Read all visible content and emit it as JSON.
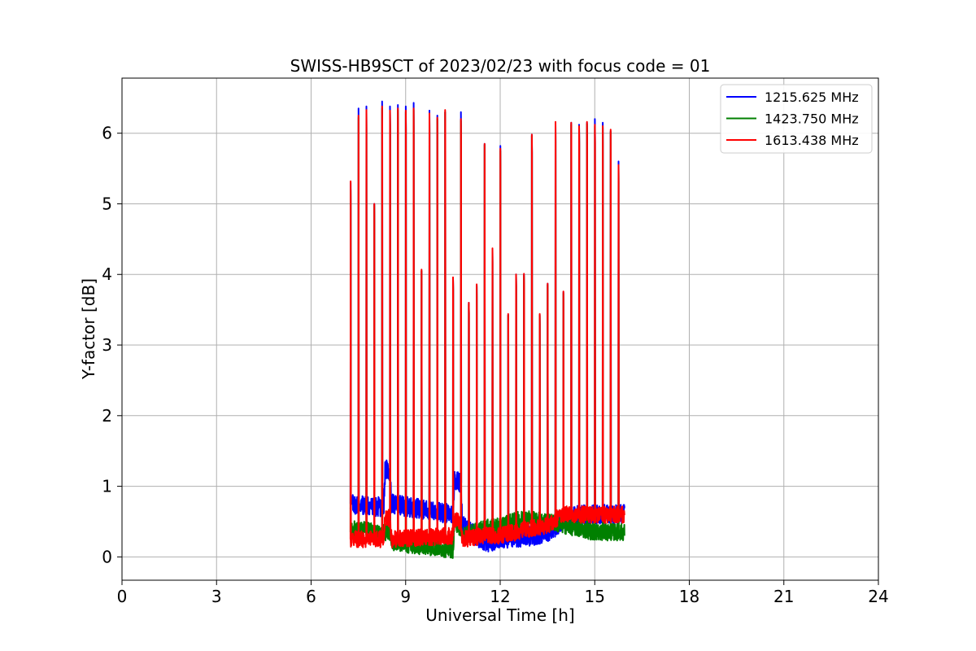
{
  "chart_data": {
    "type": "line",
    "title": "SWISS-HB9SCT of 2023/02/23 with focus code = 01",
    "xlabel": "Universal Time [h]",
    "ylabel": "Y-factor [dB]",
    "xlim": [
      0,
      24
    ],
    "ylim": [
      -0.33,
      6.78
    ],
    "xticks": [
      0,
      3,
      6,
      9,
      12,
      15,
      18,
      21,
      24
    ],
    "yticks": [
      0,
      1,
      2,
      3,
      4,
      5,
      6
    ],
    "grid": true,
    "legend_position": "top-right",
    "series": [
      {
        "name": "1215.625 MHz",
        "color": "#0000ff",
        "baseline": [
          [
            7.25,
            0.75
          ],
          [
            8.3,
            0.7
          ],
          [
            8.35,
            1.25
          ],
          [
            8.5,
            1.2
          ],
          [
            8.55,
            0.75
          ],
          [
            10.5,
            0.6
          ],
          [
            10.55,
            1.1
          ],
          [
            10.75,
            1.05
          ],
          [
            10.8,
            0.45
          ],
          [
            11.2,
            0.3
          ],
          [
            11.5,
            0.2
          ],
          [
            12.0,
            0.25
          ],
          [
            13.0,
            0.3
          ],
          [
            13.5,
            0.35
          ],
          [
            14.0,
            0.5
          ],
          [
            14.5,
            0.6
          ],
          [
            15.0,
            0.6
          ],
          [
            15.95,
            0.62
          ]
        ],
        "noise": 0.14,
        "peaks": [
          [
            7.25,
            5.3
          ],
          [
            7.5,
            6.35
          ],
          [
            7.75,
            6.38
          ],
          [
            8.0,
            5.0
          ],
          [
            8.25,
            6.45
          ],
          [
            8.5,
            6.38
          ],
          [
            8.75,
            6.4
          ],
          [
            9.0,
            6.38
          ],
          [
            9.25,
            6.43
          ],
          [
            9.5,
            4.05
          ],
          [
            9.75,
            6.32
          ],
          [
            10.0,
            6.25
          ],
          [
            10.25,
            6.3
          ],
          [
            10.5,
            3.95
          ],
          [
            10.75,
            6.3
          ],
          [
            11.0,
            3.6
          ],
          [
            11.25,
            3.85
          ],
          [
            11.5,
            5.85
          ],
          [
            11.75,
            4.35
          ],
          [
            12.0,
            5.82
          ],
          [
            12.25,
            3.43
          ],
          [
            12.5,
            4.0
          ],
          [
            12.75,
            4.0
          ],
          [
            13.0,
            5.98
          ],
          [
            13.25,
            3.43
          ],
          [
            13.5,
            3.87
          ],
          [
            13.75,
            6.15
          ],
          [
            14.0,
            3.75
          ],
          [
            14.25,
            6.15
          ],
          [
            14.5,
            6.12
          ],
          [
            14.75,
            6.15
          ],
          [
            15.0,
            6.2
          ],
          [
            15.25,
            6.15
          ],
          [
            15.5,
            6.03
          ],
          [
            15.75,
            5.6
          ]
        ]
      },
      {
        "name": "1423.750 MHz",
        "color": "#008000",
        "baseline": [
          [
            7.25,
            0.35
          ],
          [
            7.4,
            0.4
          ],
          [
            8.1,
            0.35
          ],
          [
            8.5,
            0.35
          ],
          [
            8.6,
            0.2
          ],
          [
            10.5,
            0.1
          ],
          [
            10.55,
            0.5
          ],
          [
            10.75,
            0.4
          ],
          [
            10.8,
            0.3
          ],
          [
            11.5,
            0.4
          ],
          [
            12.0,
            0.45
          ],
          [
            12.8,
            0.55
          ],
          [
            13.5,
            0.5
          ],
          [
            14.0,
            0.45
          ],
          [
            14.5,
            0.4
          ],
          [
            15.0,
            0.35
          ],
          [
            15.95,
            0.35
          ]
        ],
        "noise": 0.12,
        "peaks": [
          [
            7.25,
            5.2
          ],
          [
            7.5,
            6.22
          ],
          [
            7.75,
            6.3
          ],
          [
            8.0,
            4.98
          ],
          [
            8.25,
            6.35
          ],
          [
            8.5,
            6.32
          ],
          [
            8.75,
            6.33
          ],
          [
            9.0,
            6.3
          ],
          [
            9.25,
            6.33
          ],
          [
            9.5,
            4.05
          ],
          [
            9.75,
            6.27
          ],
          [
            10.0,
            6.2
          ],
          [
            10.25,
            6.3
          ],
          [
            10.5,
            3.93
          ],
          [
            10.75,
            6.18
          ],
          [
            11.0,
            3.58
          ],
          [
            11.25,
            3.83
          ],
          [
            11.5,
            5.83
          ],
          [
            11.75,
            4.33
          ],
          [
            12.0,
            5.75
          ],
          [
            12.25,
            3.42
          ],
          [
            12.5,
            3.98
          ],
          [
            12.75,
            3.98
          ],
          [
            13.0,
            5.96
          ],
          [
            13.25,
            3.42
          ],
          [
            13.5,
            3.85
          ],
          [
            13.75,
            6.13
          ],
          [
            14.0,
            3.73
          ],
          [
            14.25,
            6.12
          ],
          [
            14.5,
            6.08
          ],
          [
            14.75,
            6.13
          ],
          [
            15.0,
            6.1
          ],
          [
            15.25,
            6.08
          ],
          [
            15.5,
            6.02
          ],
          [
            15.75,
            5.52
          ]
        ]
      },
      {
        "name": "1613.438 MHz",
        "color": "#ff0000",
        "baseline": [
          [
            7.25,
            0.25
          ],
          [
            8.1,
            0.25
          ],
          [
            8.3,
            0.25
          ],
          [
            8.35,
            0.55
          ],
          [
            8.5,
            0.55
          ],
          [
            8.55,
            0.25
          ],
          [
            10.5,
            0.3
          ],
          [
            10.55,
            0.55
          ],
          [
            10.75,
            0.5
          ],
          [
            10.8,
            0.25
          ],
          [
            11.5,
            0.3
          ],
          [
            12.0,
            0.3
          ],
          [
            13.0,
            0.4
          ],
          [
            13.5,
            0.45
          ],
          [
            14.0,
            0.6
          ],
          [
            14.5,
            0.6
          ],
          [
            15.0,
            0.6
          ],
          [
            15.95,
            0.6
          ]
        ],
        "noise": 0.12,
        "peaks": [
          [
            7.25,
            5.32
          ],
          [
            7.5,
            6.25
          ],
          [
            7.75,
            6.33
          ],
          [
            8.0,
            5.0
          ],
          [
            8.25,
            6.38
          ],
          [
            8.5,
            6.32
          ],
          [
            8.75,
            6.35
          ],
          [
            9.0,
            6.32
          ],
          [
            9.25,
            6.35
          ],
          [
            9.5,
            4.07
          ],
          [
            9.75,
            6.28
          ],
          [
            10.0,
            6.22
          ],
          [
            10.25,
            6.33
          ],
          [
            10.5,
            3.96
          ],
          [
            10.75,
            6.2
          ],
          [
            11.0,
            3.6
          ],
          [
            11.25,
            3.86
          ],
          [
            11.5,
            5.85
          ],
          [
            11.75,
            4.37
          ],
          [
            12.0,
            5.78
          ],
          [
            12.25,
            3.44
          ],
          [
            12.5,
            4.0
          ],
          [
            12.75,
            4.01
          ],
          [
            13.0,
            5.98
          ],
          [
            13.25,
            3.44
          ],
          [
            13.5,
            3.87
          ],
          [
            13.75,
            6.16
          ],
          [
            14.0,
            3.76
          ],
          [
            14.25,
            6.15
          ],
          [
            14.5,
            6.1
          ],
          [
            14.75,
            6.16
          ],
          [
            15.0,
            6.12
          ],
          [
            15.25,
            6.1
          ],
          [
            15.5,
            6.05
          ],
          [
            15.75,
            5.55
          ]
        ]
      }
    ]
  }
}
